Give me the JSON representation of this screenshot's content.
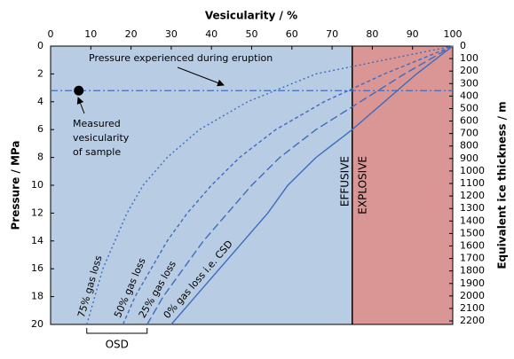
{
  "chart_data": {
    "type": "line",
    "title": "Vesicularity / %",
    "y_label": "Pressure / MPa",
    "y2_label": "Equivalent ice thickness / m",
    "xlim": [
      0,
      100
    ],
    "xticks": [
      0,
      10,
      20,
      30,
      40,
      50,
      60,
      70,
      80,
      90,
      100
    ],
    "ylim": [
      0,
      20
    ],
    "yticks": [
      0,
      2,
      4,
      6,
      8,
      10,
      12,
      14,
      16,
      18,
      20
    ],
    "y_inverted": true,
    "y2lim": [
      0,
      2228
    ],
    "y2ticks": [
      0,
      100,
      200,
      300,
      400,
      500,
      600,
      700,
      800,
      900,
      1000,
      1100,
      1200,
      1300,
      1400,
      1500,
      1600,
      1700,
      1800,
      1900,
      2000,
      2100,
      2200
    ],
    "regions": [
      {
        "name": "EFFUSIVE",
        "xlim": [
          0,
          75
        ],
        "color": "#b8cce4"
      },
      {
        "name": "EXPLOSIVE",
        "xlim": [
          75,
          100
        ],
        "color": "#d99694"
      }
    ],
    "threshold": 75,
    "series": [
      {
        "name": "75% gas loss",
        "color": "#3d6cc0",
        "dash": "2,3",
        "x": [
          9,
          11,
          13,
          16,
          19,
          23,
          29,
          37,
          49,
          66,
          100
        ],
        "values": [
          20,
          18,
          16,
          14,
          12,
          10,
          8,
          6,
          4,
          2,
          0
        ]
      },
      {
        "name": "50% gas loss",
        "color": "#3d6cc0",
        "dash": "4,3",
        "x": [
          18,
          21,
          25,
          29,
          34,
          40,
          47,
          56,
          68,
          83,
          100
        ],
        "values": [
          20,
          18,
          16,
          14,
          12,
          10,
          8,
          6,
          4,
          2,
          0
        ]
      },
      {
        "name": "25% gas loss",
        "color": "#3d6cc0",
        "dash": "9,4",
        "x": [
          24,
          28,
          33,
          38,
          44,
          50,
          57,
          66,
          77,
          88,
          100
        ],
        "values": [
          20,
          18,
          16,
          14,
          12,
          10,
          8,
          6,
          4,
          2,
          0
        ]
      },
      {
        "name": "0% gas loss i.e. CSD",
        "color": "#3d6cc0",
        "dash": "none",
        "x": [
          30,
          36,
          42,
          48,
          54,
          59,
          66,
          75,
          83,
          91,
          100
        ],
        "values": [
          20,
          18,
          16,
          14,
          12,
          10,
          8,
          6,
          4,
          2,
          0
        ]
      }
    ],
    "eruption_pressure": {
      "value": 3.2,
      "label": "Pressure experienced during eruption"
    },
    "sample": {
      "x": 7,
      "y": 3.2,
      "label": [
        "Measured",
        "vesicularity",
        "of sample"
      ]
    },
    "osd": {
      "range": [
        9,
        24
      ],
      "label": "OSD"
    }
  }
}
